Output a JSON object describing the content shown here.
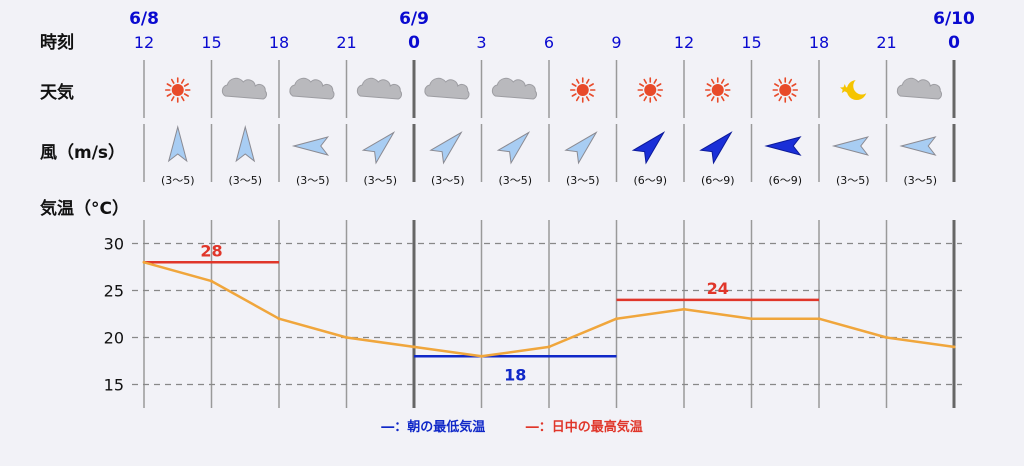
{
  "labels": {
    "time": "時刻",
    "weather": "天気",
    "wind": "風（m/s）",
    "temp": "気温（°C）"
  },
  "dates": [
    "6/8",
    "6/9",
    "6/10"
  ],
  "hours": [
    "12",
    "15",
    "18",
    "21",
    "0",
    "3",
    "6",
    "9",
    "12",
    "15",
    "18",
    "21",
    "0"
  ],
  "weather": [
    "sun-icon",
    "cloud-icon",
    "cloud-icon",
    "cloud-icon",
    "cloud-icon",
    "cloud-icon",
    "sun-icon",
    "sun-icon",
    "sun-icon",
    "sun-icon",
    "moon-star-icon",
    "cloud-icon"
  ],
  "wind": {
    "directions": [
      "N",
      "N",
      "W",
      "NE",
      "NE",
      "NE",
      "NE",
      "NE",
      "NE",
      "W",
      "W",
      "W"
    ],
    "ranges": [
      "(3〜5)",
      "(3〜5)",
      "(3〜5)",
      "(3〜5)",
      "(3〜5)",
      "(3〜5)",
      "(3〜5)",
      "(6〜9)",
      "(6〜9)",
      "(6〜9)",
      "(3〜5)",
      "(3〜5)"
    ],
    "strength": [
      "light",
      "light",
      "light",
      "light",
      "light",
      "light",
      "light",
      "strong",
      "strong",
      "strong",
      "light",
      "light"
    ]
  },
  "chart_data": {
    "type": "line",
    "ylabel": "気温（°C）",
    "x": [
      "6/8 12",
      "15",
      "18",
      "21",
      "6/9 0",
      "3",
      "6",
      "9",
      "12",
      "15",
      "18",
      "21",
      "6/10 0"
    ],
    "series": [
      {
        "values": [
          28,
          26,
          22,
          20,
          19,
          18,
          19,
          22,
          23,
          22,
          22,
          20,
          19
        ]
      }
    ],
    "yticks": [
      15,
      20,
      25,
      30
    ],
    "ylim": [
      13,
      31
    ],
    "grid": true,
    "morning_min": {
      "value": 18,
      "label": "18",
      "from_index": 4,
      "to_index": 7
    },
    "daytime_max": [
      {
        "value": 28,
        "label": "28",
        "from_index": 0,
        "to_index": 2
      },
      {
        "value": 24,
        "label": "24",
        "from_index": 7,
        "to_index": 10
      }
    ],
    "colors": {
      "line": "#f0a63c",
      "min": "#1028c8",
      "max": "#e0362a"
    }
  },
  "legend": {
    "min": "―：朝の最低気温",
    "max": "―：日中の最高気温"
  }
}
